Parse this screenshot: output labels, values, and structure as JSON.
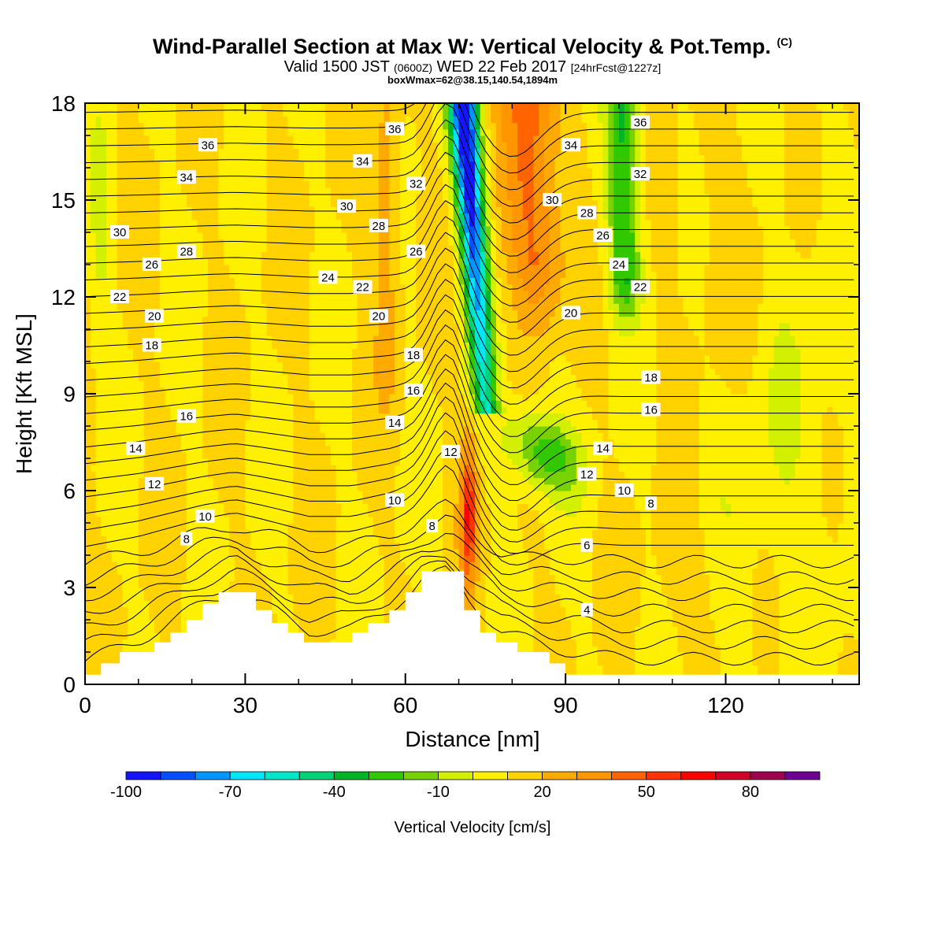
{
  "header": {
    "title": "Wind-Parallel Section at Max W: Vertical Velocity & Pot.Temp.",
    "copyright": "(C)",
    "valid_prefix": "Valid 1500 JST",
    "valid_z": "(0600Z)",
    "valid_date": "WED 22 Feb 2017",
    "forecast": "[24hrFcst@1227z]",
    "box_info": "boxWmax=62@38.15,140.54,1894m"
  },
  "colors": {
    "colorbar": [
      "#1414ff",
      "#0050ff",
      "#0096ff",
      "#00e6ff",
      "#00e6c8",
      "#00d278",
      "#00b428",
      "#32c800",
      "#78d200",
      "#d2f000",
      "#fff000",
      "#ffd200",
      "#ffaa00",
      "#ff9600",
      "#ff6400",
      "#ff3200",
      "#ff0000",
      "#d20028",
      "#a00050",
      "#6e0096"
    ],
    "terrain": "#ffffff",
    "contour": "#000000"
  },
  "chart_data": {
    "type": "heatmap",
    "xlabel": "Distance [nm]",
    "ylabel": "Height [Kft MSL]",
    "xlim": [
      0,
      145
    ],
    "ylim": [
      0,
      18
    ],
    "xticks": [
      0,
      30,
      60,
      90,
      120
    ],
    "yticks": [
      0,
      3,
      6,
      9,
      12,
      15,
      18
    ],
    "colorbar": {
      "label": "Vertical Velocity [cm/s]",
      "min": -100,
      "max": 100,
      "step": 10,
      "tick_labels": [
        -100,
        -70,
        -40,
        -10,
        20,
        50,
        80
      ]
    },
    "terrain_profile": [
      [
        0,
        0.3
      ],
      [
        3,
        0.3
      ],
      [
        3,
        0.65
      ],
      [
        6.5,
        0.65
      ],
      [
        6.5,
        1.0
      ],
      [
        13,
        1.0
      ],
      [
        13,
        1.3
      ],
      [
        16,
        1.3
      ],
      [
        16,
        1.6
      ],
      [
        19,
        1.6
      ],
      [
        19,
        2.0
      ],
      [
        22,
        2.0
      ],
      [
        22,
        2.5
      ],
      [
        25,
        2.5
      ],
      [
        25,
        2.85
      ],
      [
        32,
        2.85
      ],
      [
        32,
        2.3
      ],
      [
        35,
        2.3
      ],
      [
        35,
        1.9
      ],
      [
        38,
        1.9
      ],
      [
        38,
        1.6
      ],
      [
        41,
        1.6
      ],
      [
        41,
        1.3
      ],
      [
        50,
        1.3
      ],
      [
        50,
        1.6
      ],
      [
        53,
        1.6
      ],
      [
        53,
        1.9
      ],
      [
        57,
        1.9
      ],
      [
        57,
        2.3
      ],
      [
        60,
        2.3
      ],
      [
        60,
        2.85
      ],
      [
        63,
        2.85
      ],
      [
        63,
        3.5
      ],
      [
        71,
        3.5
      ],
      [
        71,
        2.3
      ],
      [
        74,
        2.3
      ],
      [
        74,
        1.6
      ],
      [
        77,
        1.6
      ],
      [
        77,
        1.3
      ],
      [
        81,
        1.3
      ],
      [
        81,
        1.0
      ],
      [
        87,
        1.0
      ],
      [
        87,
        0.65
      ],
      [
        90,
        0.65
      ],
      [
        90,
        0.3
      ],
      [
        145,
        0.3
      ]
    ],
    "vertical_velocity_features": [
      {
        "x": 71.5,
        "y_range": [
          3.5,
          7.5
        ],
        "w": 2.5,
        "value": 55
      },
      {
        "x": 71,
        "y_range": [
          13,
          18
        ],
        "w": 3,
        "value": -100
      },
      {
        "x": 70,
        "y_range": [
          11,
          18
        ],
        "w": 5,
        "value": -60
      },
      {
        "x": 84,
        "y_range": [
          11,
          18
        ],
        "w": 7,
        "value": 40
      },
      {
        "x": 101,
        "y_range": [
          11,
          18
        ],
        "w": 5,
        "value": -30
      },
      {
        "x": 90,
        "y_range": [
          5.8,
          8.5
        ],
        "w": 8,
        "value": -25
      }
    ],
    "potential_temperature_labels": [
      {
        "x": 23,
        "y": 16.7,
        "text": "36"
      },
      {
        "x": 58,
        "y": 17.2,
        "text": "36"
      },
      {
        "x": 104,
        "y": 17.4,
        "text": "36"
      },
      {
        "x": 19,
        "y": 15.7,
        "text": "34"
      },
      {
        "x": 52,
        "y": 16.2,
        "text": "34"
      },
      {
        "x": 91,
        "y": 16.7,
        "text": "34"
      },
      {
        "x": 62,
        "y": 15.5,
        "text": "32"
      },
      {
        "x": 104,
        "y": 15.8,
        "text": "32"
      },
      {
        "x": 49,
        "y": 14.8,
        "text": "30"
      },
      {
        "x": 87.5,
        "y": 15.0,
        "text": "30"
      },
      {
        "x": 6.5,
        "y": 14.0,
        "text": "30"
      },
      {
        "x": 19,
        "y": 13.4,
        "text": "28"
      },
      {
        "x": 55,
        "y": 14.2,
        "text": "28"
      },
      {
        "x": 94,
        "y": 14.6,
        "text": "28"
      },
      {
        "x": 12.5,
        "y": 13.0,
        "text": "26"
      },
      {
        "x": 62,
        "y": 13.4,
        "text": "26"
      },
      {
        "x": 97,
        "y": 13.9,
        "text": "26"
      },
      {
        "x": 45.5,
        "y": 12.6,
        "text": "24"
      },
      {
        "x": 100,
        "y": 13.0,
        "text": "24"
      },
      {
        "x": 6.5,
        "y": 12.0,
        "text": "22"
      },
      {
        "x": 52,
        "y": 12.3,
        "text": "22"
      },
      {
        "x": 104,
        "y": 12.3,
        "text": "22"
      },
      {
        "x": 13,
        "y": 11.4,
        "text": "20"
      },
      {
        "x": 55,
        "y": 11.4,
        "text": "20"
      },
      {
        "x": 91,
        "y": 11.5,
        "text": "20"
      },
      {
        "x": 12.5,
        "y": 10.5,
        "text": "18"
      },
      {
        "x": 61.5,
        "y": 10.2,
        "text": "18"
      },
      {
        "x": 106,
        "y": 9.5,
        "text": "18"
      },
      {
        "x": 19,
        "y": 8.3,
        "text": "16"
      },
      {
        "x": 61.5,
        "y": 9.1,
        "text": "16"
      },
      {
        "x": 106,
        "y": 8.5,
        "text": "16"
      },
      {
        "x": 9.5,
        "y": 7.3,
        "text": "14"
      },
      {
        "x": 58,
        "y": 8.1,
        "text": "14"
      },
      {
        "x": 97,
        "y": 7.3,
        "text": "14"
      },
      {
        "x": 13,
        "y": 6.2,
        "text": "12"
      },
      {
        "x": 68.5,
        "y": 7.2,
        "text": "12"
      },
      {
        "x": 94,
        "y": 6.5,
        "text": "12"
      },
      {
        "x": 22.5,
        "y": 5.2,
        "text": "10"
      },
      {
        "x": 58,
        "y": 5.7,
        "text": "10"
      },
      {
        "x": 101,
        "y": 6.0,
        "text": "10"
      },
      {
        "x": 19,
        "y": 4.5,
        "text": "8"
      },
      {
        "x": 65,
        "y": 4.9,
        "text": "8"
      },
      {
        "x": 106,
        "y": 5.6,
        "text": "8"
      },
      {
        "x": 94,
        "y": 4.3,
        "text": "6"
      },
      {
        "x": 94,
        "y": 2.3,
        "text": "4"
      }
    ]
  }
}
